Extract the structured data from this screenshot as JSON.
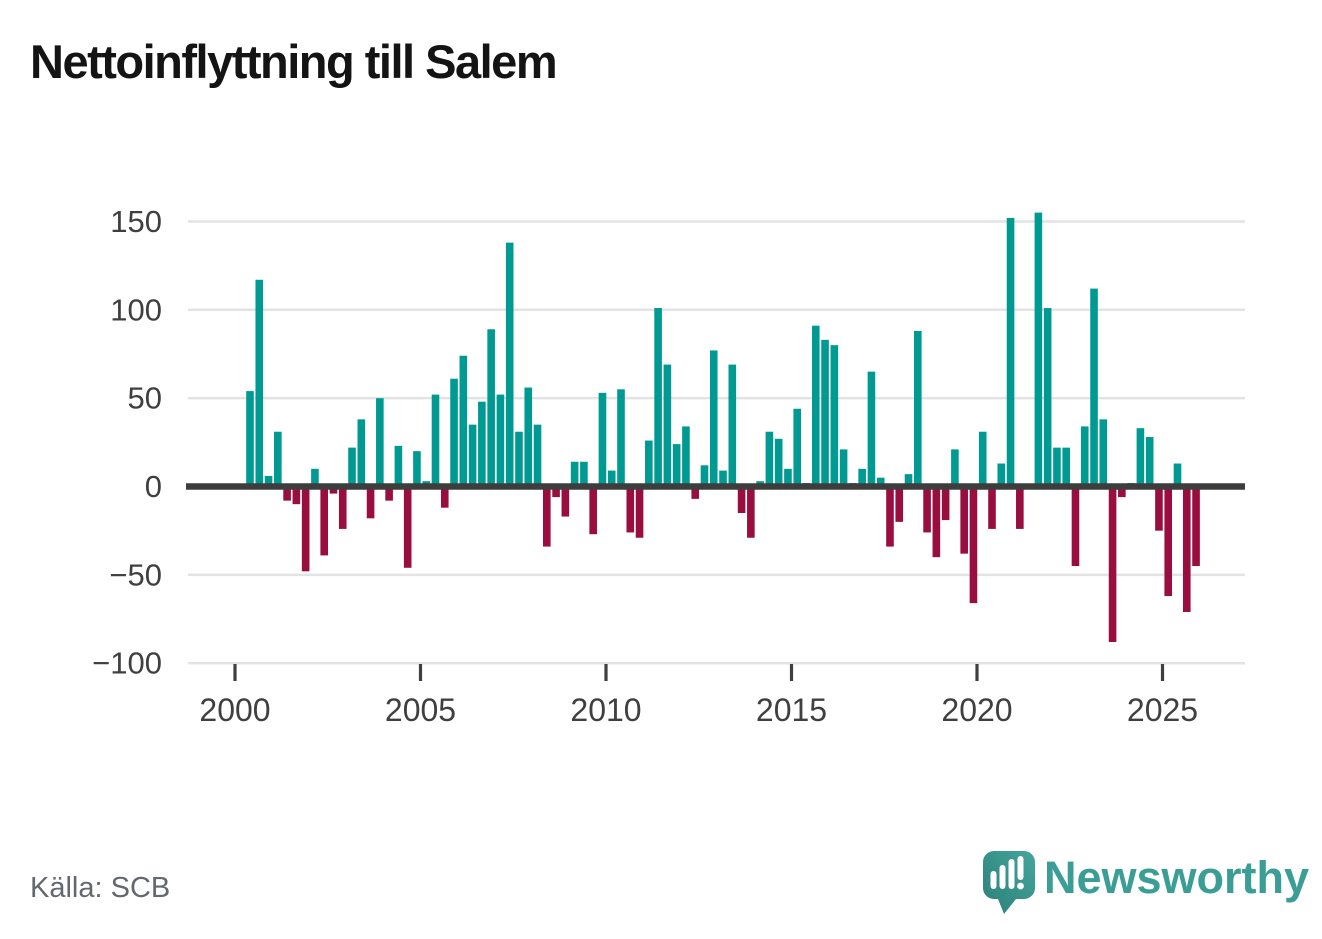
{
  "title": "Nettoinflyttning till Salem",
  "source": "Källa: SCB",
  "brand": {
    "name": "Newsworthy",
    "color": "#3a9e96",
    "icon": "speech-bubble-bar-chart"
  },
  "colors": {
    "positive_bar": "#009a92",
    "negative_bar": "#990e3e",
    "zero_line": "#3d3d3d",
    "gridline": "#e3e3e3",
    "axis_text": "#3f3f3f",
    "source_text": "#63686f",
    "title_text": "#141414"
  },
  "chart_data": {
    "type": "bar",
    "title": "Nettoinflyttning till Salem",
    "frequency": "quarterly",
    "start": "2000 Q2",
    "end": "2025 Q4",
    "xlabel": "",
    "ylabel": "",
    "ylim": [
      -100,
      160
    ],
    "grid": "horizontal",
    "x_axis": {
      "labels": [
        "2000",
        "2005",
        "2010",
        "2015",
        "2020",
        "2025"
      ]
    },
    "y_axis": {
      "ticks": [
        150,
        100,
        50,
        0,
        -50,
        -100
      ],
      "labels": [
        "150",
        "100",
        "50",
        "0",
        "−50",
        "−100"
      ]
    },
    "values": [
      54,
      117,
      6,
      31,
      -8,
      -10,
      -48,
      10,
      -39,
      -4,
      -24,
      22,
      38,
      -18,
      50,
      -8,
      23,
      -46,
      20,
      3,
      52,
      -12,
      61,
      74,
      35,
      48,
      89,
      52,
      138,
      31,
      56,
      35,
      -34,
      -6,
      -17,
      14,
      14,
      -27,
      53,
      9,
      55,
      -26,
      -29,
      26,
      101,
      69,
      24,
      34,
      -7,
      12,
      77,
      9,
      69,
      -15,
      -29,
      3,
      31,
      27,
      10,
      44,
      2,
      91,
      83,
      80,
      21,
      2,
      10,
      65,
      5,
      -34,
      -20,
      7,
      88,
      -26,
      -40,
      -19,
      21,
      -38,
      -66,
      31,
      -24,
      13,
      152,
      -24,
      0,
      155,
      101,
      22,
      22,
      -45,
      34,
      112,
      38,
      -88,
      -6,
      2,
      33,
      28,
      -25,
      -62,
      13,
      -71,
      -45
    ]
  }
}
